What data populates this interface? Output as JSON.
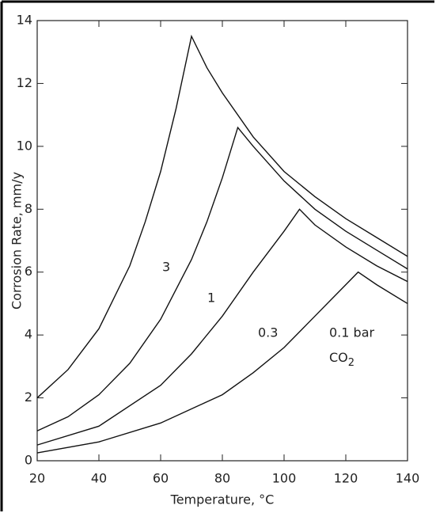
{
  "chart_data": {
    "type": "line",
    "x_label": "Temperature, °C",
    "y_label": "Corrosion Rate, mm/y",
    "xlim": [
      20,
      140
    ],
    "xticks": [
      20,
      40,
      60,
      80,
      100,
      120,
      140
    ],
    "ylim": [
      0,
      14
    ],
    "yticks": [
      0,
      2,
      4,
      6,
      8,
      10,
      12,
      14
    ],
    "series": [
      {
        "name": "3",
        "color": "#111111",
        "x": [
          20,
          30,
          40,
          50,
          55,
          60,
          65,
          70,
          75,
          80,
          90,
          100,
          110,
          120,
          130,
          140
        ],
        "values": [
          2.0,
          2.9,
          4.2,
          6.2,
          7.6,
          9.2,
          11.2,
          13.5,
          12.5,
          11.7,
          10.3,
          9.2,
          8.4,
          7.7,
          7.1,
          6.5
        ]
      },
      {
        "name": "1",
        "color": "#111111",
        "x": [
          20,
          30,
          40,
          50,
          60,
          70,
          75,
          80,
          85,
          90,
          100,
          110,
          120,
          130,
          140
        ],
        "values": [
          0.95,
          1.4,
          2.1,
          3.1,
          4.5,
          6.4,
          7.6,
          9.0,
          10.6,
          10.0,
          8.9,
          8.0,
          7.3,
          6.7,
          6.1
        ]
      },
      {
        "name": "0.3",
        "color": "#111111",
        "x": [
          20,
          40,
          60,
          70,
          80,
          90,
          100,
          105,
          110,
          120,
          130,
          140
        ],
        "values": [
          0.5,
          1.1,
          2.4,
          3.4,
          4.6,
          6.0,
          7.3,
          8.0,
          7.5,
          6.8,
          6.2,
          5.7
        ]
      },
      {
        "name": "0.1 bar",
        "color": "#111111",
        "x": [
          20,
          40,
          60,
          80,
          90,
          100,
          110,
          120,
          124,
          130,
          140
        ],
        "values": [
          0.25,
          0.6,
          1.2,
          2.1,
          2.8,
          3.6,
          4.6,
          5.6,
          6.0,
          5.6,
          5.0
        ]
      }
    ],
    "annotation": {
      "text": "CO",
      "subscript": "2"
    }
  }
}
